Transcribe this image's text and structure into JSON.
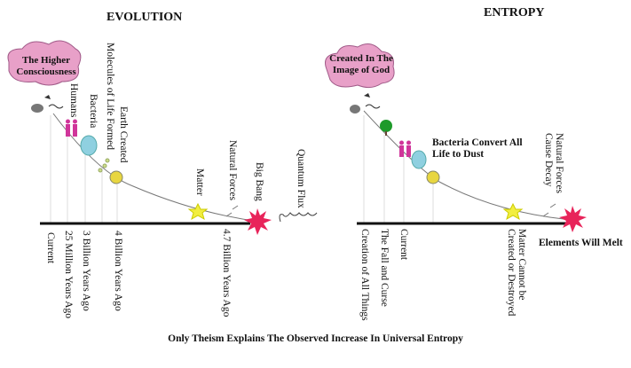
{
  "evolution": {
    "title": "EVOLUTION",
    "cloud": "The Higher Consciousness",
    "above_labels": [
      "Humans",
      "Bacteria",
      "Molecules of Life Formed",
      "Earth Created",
      "Matter",
      "Natural Forces",
      "Big Bang",
      "Quantum Flux"
    ],
    "below_labels": [
      "Current",
      "25 Million Years Ago",
      "3 Billion Years Ago",
      "4 Billion Years Ago",
      "4.7 Billion Years Ago"
    ]
  },
  "entropy": {
    "title": "ENTROPY",
    "cloud": "Created In The Image of God",
    "bacteria_note": "Bacteria Convert All Life to Dust",
    "natural_forces": "Natural Forces Cause Decay",
    "end_label": "Elements Will Melt",
    "below_labels": [
      "Creation of All Things",
      "The Fall and Curse",
      "Current",
      "Matter Cannot be Created or Destroyed"
    ]
  },
  "caption": "Only Theism Explains The Observed Increase In Universal Entropy",
  "colors": {
    "cloud": "#e8a0c8",
    "humans": "#d0359a",
    "bacteria": "#8fd0e0",
    "earth": "#e8d640",
    "star": "#f2ee40",
    "burst": "#e8245a",
    "tree": "#1e9a2a"
  }
}
